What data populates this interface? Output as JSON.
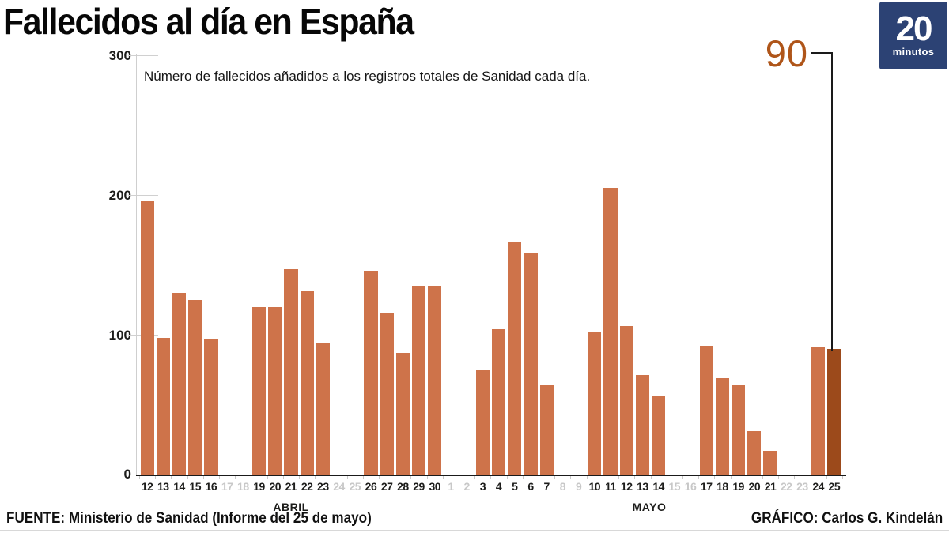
{
  "header": {
    "title": "Fallecidos al día en España",
    "logo": {
      "number": "20",
      "word": "minutos"
    }
  },
  "chart_data": {
    "type": "bar",
    "title": "Fallecidos al día en España",
    "subtitle": "Número de fallecidos añadidos a los registros totales de Sanidad cada día.",
    "ylim": [
      0,
      300
    ],
    "yticks_display": [
      "300",
      "200",
      "100",
      "0"
    ],
    "grid": "y-ticks only, no full gridlines",
    "legend": false,
    "annotation": {
      "text": "90",
      "target": "25 MAYO"
    },
    "months": [
      {
        "label": "ABRIL",
        "days": [
          {
            "day": "12",
            "value": 196
          },
          {
            "day": "13",
            "value": 98
          },
          {
            "day": "14",
            "value": 130
          },
          {
            "day": "15",
            "value": 125
          },
          {
            "day": "16",
            "value": 97
          },
          {
            "day": "17",
            "value": null
          },
          {
            "day": "18",
            "value": null
          },
          {
            "day": "19",
            "value": 120
          },
          {
            "day": "20",
            "value": 120
          },
          {
            "day": "21",
            "value": 147
          },
          {
            "day": "22",
            "value": 131
          },
          {
            "day": "23",
            "value": 94
          },
          {
            "day": "24",
            "value": null
          },
          {
            "day": "25",
            "value": null
          },
          {
            "day": "26",
            "value": 146
          },
          {
            "day": "27",
            "value": 116
          },
          {
            "day": "28",
            "value": 87
          },
          {
            "day": "29",
            "value": 135
          },
          {
            "day": "30",
            "value": 135
          }
        ]
      },
      {
        "label": "MAYO",
        "days": [
          {
            "day": "1",
            "value": null
          },
          {
            "day": "2",
            "value": null
          },
          {
            "day": "3",
            "value": 75
          },
          {
            "day": "4",
            "value": 104
          },
          {
            "day": "5",
            "value": 166
          },
          {
            "day": "6",
            "value": 159
          },
          {
            "day": "7",
            "value": 64
          },
          {
            "day": "8",
            "value": null
          },
          {
            "day": "9",
            "value": null
          },
          {
            "day": "10",
            "value": 102
          },
          {
            "day": "11",
            "value": 205
          },
          {
            "day": "12",
            "value": 106
          },
          {
            "day": "13",
            "value": 71
          },
          {
            "day": "14",
            "value": 56
          },
          {
            "day": "15",
            "value": null
          },
          {
            "day": "16",
            "value": null
          },
          {
            "day": "17",
            "value": 92
          },
          {
            "day": "18",
            "value": 69
          },
          {
            "day": "19",
            "value": 64
          },
          {
            "day": "20",
            "value": 31
          },
          {
            "day": "21",
            "value": 17
          },
          {
            "day": "22",
            "value": null
          },
          {
            "day": "23",
            "value": null
          },
          {
            "day": "24",
            "value": 91
          },
          {
            "day": "25",
            "value": 90,
            "highlight": true
          }
        ]
      }
    ]
  },
  "footer": {
    "source": "FUENTE: Ministerio de Sanidad (Informe del 25 de mayo)",
    "credit": "GRÁFICO: Carlos G. Kindelán"
  },
  "colors": {
    "bar": "#CE734A",
    "bar_highlight": "#9C4A1B",
    "annotation": "#AF5519",
    "logo_bg": "#2C4274",
    "day_active": "#1D1D1B",
    "day_inactive": "#C8C8C8"
  }
}
